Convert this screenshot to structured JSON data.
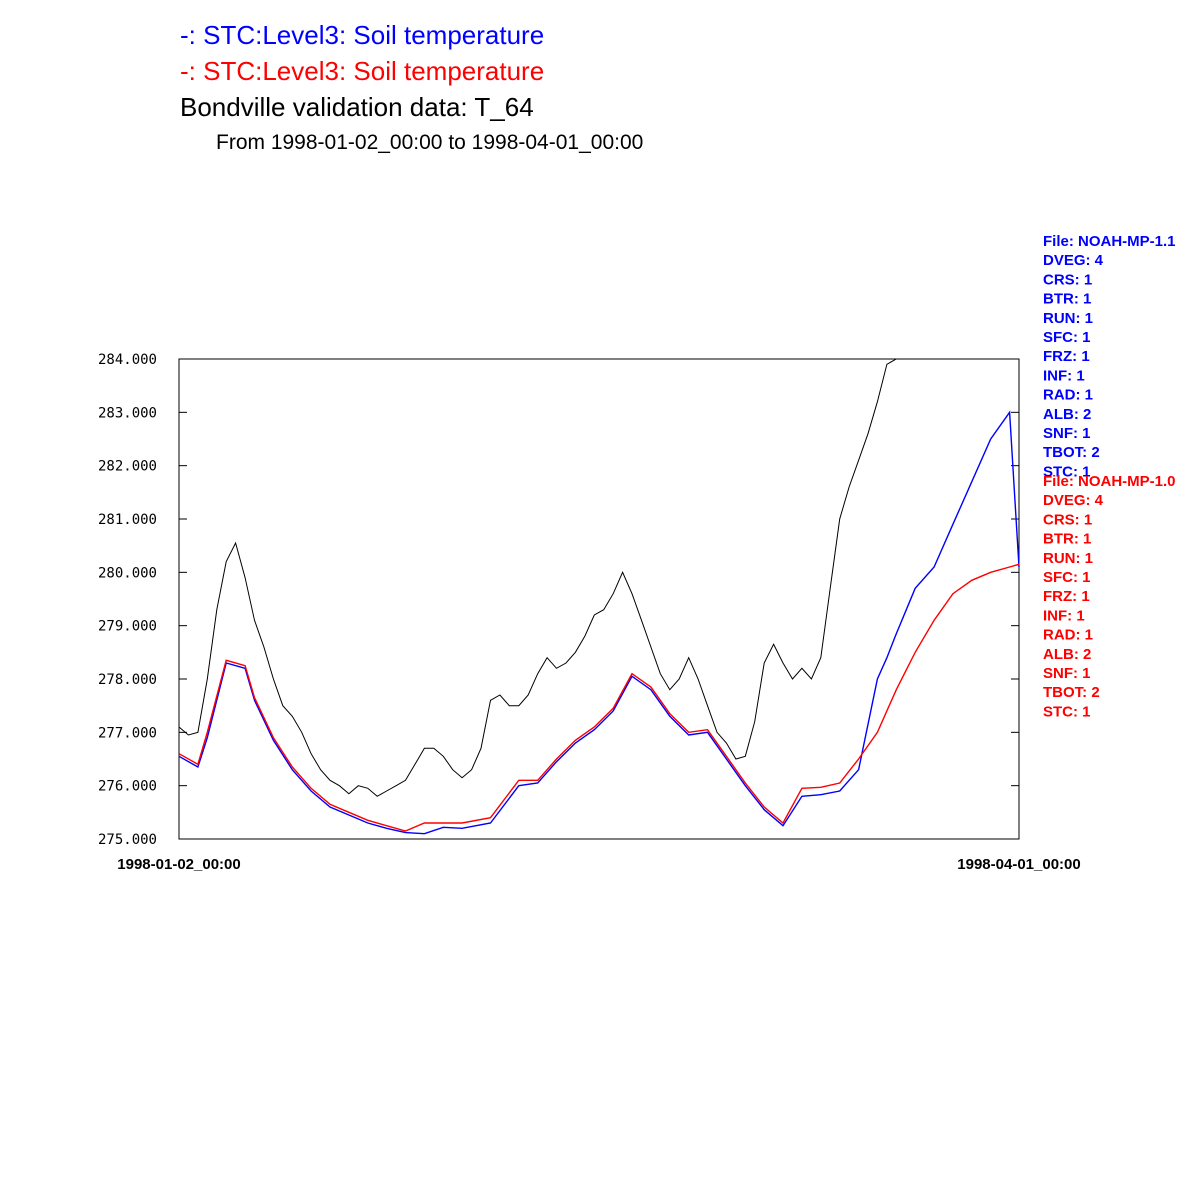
{
  "header": {
    "line1": "-:  STC:Level3: Soil temperature",
    "line2": "-:  STC:Level3: Soil temperature",
    "line3": "Bondville validation data:  T_64",
    "line4": "From 1998-01-02_00:00 to 1998-04-01_00:00"
  },
  "colors": {
    "model_11": "#0000ff",
    "model_10": "#ff0000",
    "obs": "#000000"
  },
  "chart_data": {
    "type": "line",
    "title": "Bondville validation data:  T_64",
    "subtitle": "From 1998-01-02_00:00 to 1998-04-01_00:00",
    "xlabel": "",
    "ylabel": "",
    "xlim": [
      "1998-01-02_00:00",
      "1998-04-01_00:00"
    ],
    "x_ticks": [
      "1998-01-02_00:00",
      "1998-04-01_00:00"
    ],
    "ylim": [
      275.0,
      284.0
    ],
    "y_ticks": [
      "275.000",
      "276.000",
      "277.000",
      "278.000",
      "279.000",
      "280.000",
      "281.000",
      "282.000",
      "283.000",
      "284.000"
    ],
    "y_tick_values": [
      275,
      276,
      277,
      278,
      279,
      280,
      281,
      282,
      283,
      284
    ],
    "grid": false,
    "legend_placement": "right",
    "series": [
      {
        "label": "-:  STC:Level3: Soil temperature",
        "color": "#0000ff",
        "x_days": [
          0,
          2,
          3,
          5,
          7,
          8,
          10,
          12,
          14,
          16,
          18,
          20,
          22,
          24,
          26,
          28,
          30,
          33,
          36,
          38,
          40,
          42,
          44,
          46,
          48,
          50,
          52,
          54,
          56,
          58,
          60,
          62,
          64,
          66,
          68,
          70,
          72,
          74,
          75,
          76,
          78,
          80,
          82,
          84,
          86,
          88,
          89
        ],
        "values": [
          276.55,
          276.35,
          276.9,
          278.3,
          278.2,
          277.6,
          276.85,
          276.3,
          275.9,
          275.6,
          275.45,
          275.3,
          275.2,
          275.12,
          275.1,
          275.22,
          275.2,
          275.3,
          276.0,
          276.05,
          276.45,
          276.8,
          277.05,
          277.4,
          278.05,
          277.8,
          277.3,
          276.95,
          277.0,
          276.5,
          276.0,
          275.55,
          275.25,
          275.8,
          275.83,
          275.9,
          276.3,
          278.0,
          278.4,
          278.85,
          279.7,
          280.1,
          280.9,
          281.7,
          282.5,
          283.0,
          280.1
        ]
      },
      {
        "label": "-:  STC:Level3: Soil temperature",
        "color": "#ff0000",
        "x_days": [
          0,
          2,
          3,
          5,
          7,
          8,
          10,
          12,
          14,
          16,
          18,
          20,
          22,
          24,
          26,
          28,
          30,
          33,
          36,
          38,
          40,
          42,
          44,
          46,
          48,
          50,
          52,
          54,
          56,
          58,
          60,
          62,
          64,
          66,
          68,
          70,
          72,
          74,
          76,
          78,
          80,
          82,
          84,
          86,
          88,
          89
        ],
        "values": [
          276.6,
          276.4,
          277.0,
          278.35,
          278.25,
          277.65,
          276.9,
          276.35,
          275.95,
          275.65,
          275.5,
          275.35,
          275.25,
          275.15,
          275.3,
          275.3,
          275.3,
          275.4,
          276.1,
          276.1,
          276.5,
          276.85,
          277.1,
          277.45,
          278.1,
          277.85,
          277.35,
          277.0,
          277.05,
          276.55,
          276.05,
          275.6,
          275.3,
          275.95,
          275.97,
          276.05,
          276.5,
          277.0,
          277.8,
          278.5,
          279.1,
          279.6,
          279.85,
          280.0,
          280.1,
          280.15
        ]
      },
      {
        "label": "Bondville validation data:  T_64",
        "color": "#000000",
        "x_days": [
          0,
          1,
          2,
          3,
          4,
          5,
          6,
          7,
          8,
          9,
          10,
          11,
          12,
          13,
          14,
          15,
          16,
          17,
          18,
          19,
          20,
          21,
          22,
          23,
          24,
          25,
          26,
          27,
          28,
          29,
          30,
          31,
          32,
          33,
          34,
          35,
          36,
          37,
          38,
          39,
          40,
          41,
          42,
          43,
          44,
          45,
          46,
          47,
          48,
          49,
          50,
          51,
          52,
          53,
          54,
          55,
          56,
          57,
          58,
          59,
          60,
          61,
          62,
          63,
          64,
          65,
          66,
          67,
          68,
          69,
          70,
          71,
          72,
          73,
          74,
          75,
          76,
          77,
          78,
          79,
          80,
          81,
          82,
          83,
          84,
          85,
          86,
          87,
          88,
          89
        ],
        "values": [
          277.1,
          276.95,
          277.0,
          278.0,
          279.3,
          280.2,
          280.55,
          279.9,
          279.1,
          278.6,
          278.0,
          277.5,
          277.3,
          277.0,
          276.6,
          276.3,
          276.1,
          276.0,
          275.85,
          276.0,
          275.95,
          275.8,
          275.9,
          276.0,
          276.1,
          276.4,
          276.7,
          276.7,
          276.55,
          276.3,
          276.15,
          276.3,
          276.7,
          277.6,
          277.7,
          277.5,
          277.5,
          277.7,
          278.1,
          278.4,
          278.2,
          278.3,
          278.5,
          278.8,
          279.2,
          279.3,
          279.6,
          280.0,
          279.6,
          279.1,
          278.6,
          278.1,
          277.8,
          278.0,
          278.4,
          278.0,
          277.5,
          277.0,
          276.8,
          276.5,
          276.55,
          277.2,
          278.3,
          278.65,
          278.3,
          278.0,
          278.2,
          278.0,
          278.4,
          279.7,
          281.0,
          281.6,
          282.1,
          282.6,
          283.2,
          283.9,
          284.0,
          284.0,
          284.0,
          284.0,
          284.0,
          284.0,
          284.0,
          284.0,
          284.0,
          284.0,
          284.0,
          284.0,
          284.0,
          284.0
        ]
      }
    ]
  },
  "legend": {
    "blue": [
      "File: NOAH-MP-1.1",
      "DVEG: 4",
      "CRS: 1",
      "BTR: 1",
      "RUN: 1",
      "SFC: 1",
      "FRZ: 1",
      "INF: 1",
      "RAD: 1",
      "ALB: 2",
      "SNF: 1",
      "TBOT: 2",
      "STC: 1"
    ],
    "red": [
      "File: NOAH-MP-1.0",
      "DVEG: 4",
      "CRS: 1",
      "BTR: 1",
      "RUN: 1",
      "SFC: 1",
      "FRZ: 1",
      "INF: 1",
      "RAD: 1",
      "ALB: 2",
      "SNF: 1",
      "TBOT: 2",
      "STC: 1"
    ]
  }
}
